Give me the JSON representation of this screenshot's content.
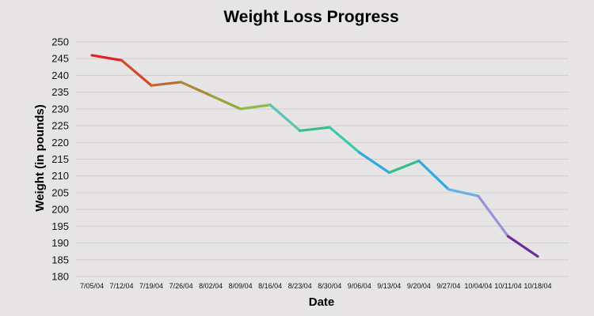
{
  "chart_data": {
    "type": "line",
    "title": "Weight Loss Progress",
    "xlabel": "Date",
    "ylabel": "Weight (in pounds)",
    "ylim": [
      180,
      250
    ],
    "ytick_step": 5,
    "grid": true,
    "categories": [
      "7/05/04",
      "7/12/04",
      "7/19/04",
      "7/26/04",
      "8/02/04",
      "8/09/04",
      "8/16/04",
      "8/23/04",
      "8/30/04",
      "9/06/04",
      "9/13/04",
      "9/20/04",
      "9/27/04",
      "10/04/04",
      "10/11/04",
      "10/18/04"
    ],
    "series": [
      {
        "values": [
          246,
          244.5,
          237,
          238,
          234,
          230,
          231.2,
          223.5,
          224.5,
          217,
          211,
          214.5,
          206,
          204,
          192,
          186
        ],
        "segment_colors": [
          "#e5201e",
          "#d1492a",
          "#bd6a2f",
          "#a88a35",
          "#96a63c",
          "#8cbd48",
          "#5cc3b5",
          "#34bf86",
          "#3cc8a9",
          "#2ea9e0",
          "#34c087",
          "#2fa9de",
          "#6ab0e2",
          "#9a92d4",
          "#6e2a9e"
        ]
      }
    ]
  }
}
